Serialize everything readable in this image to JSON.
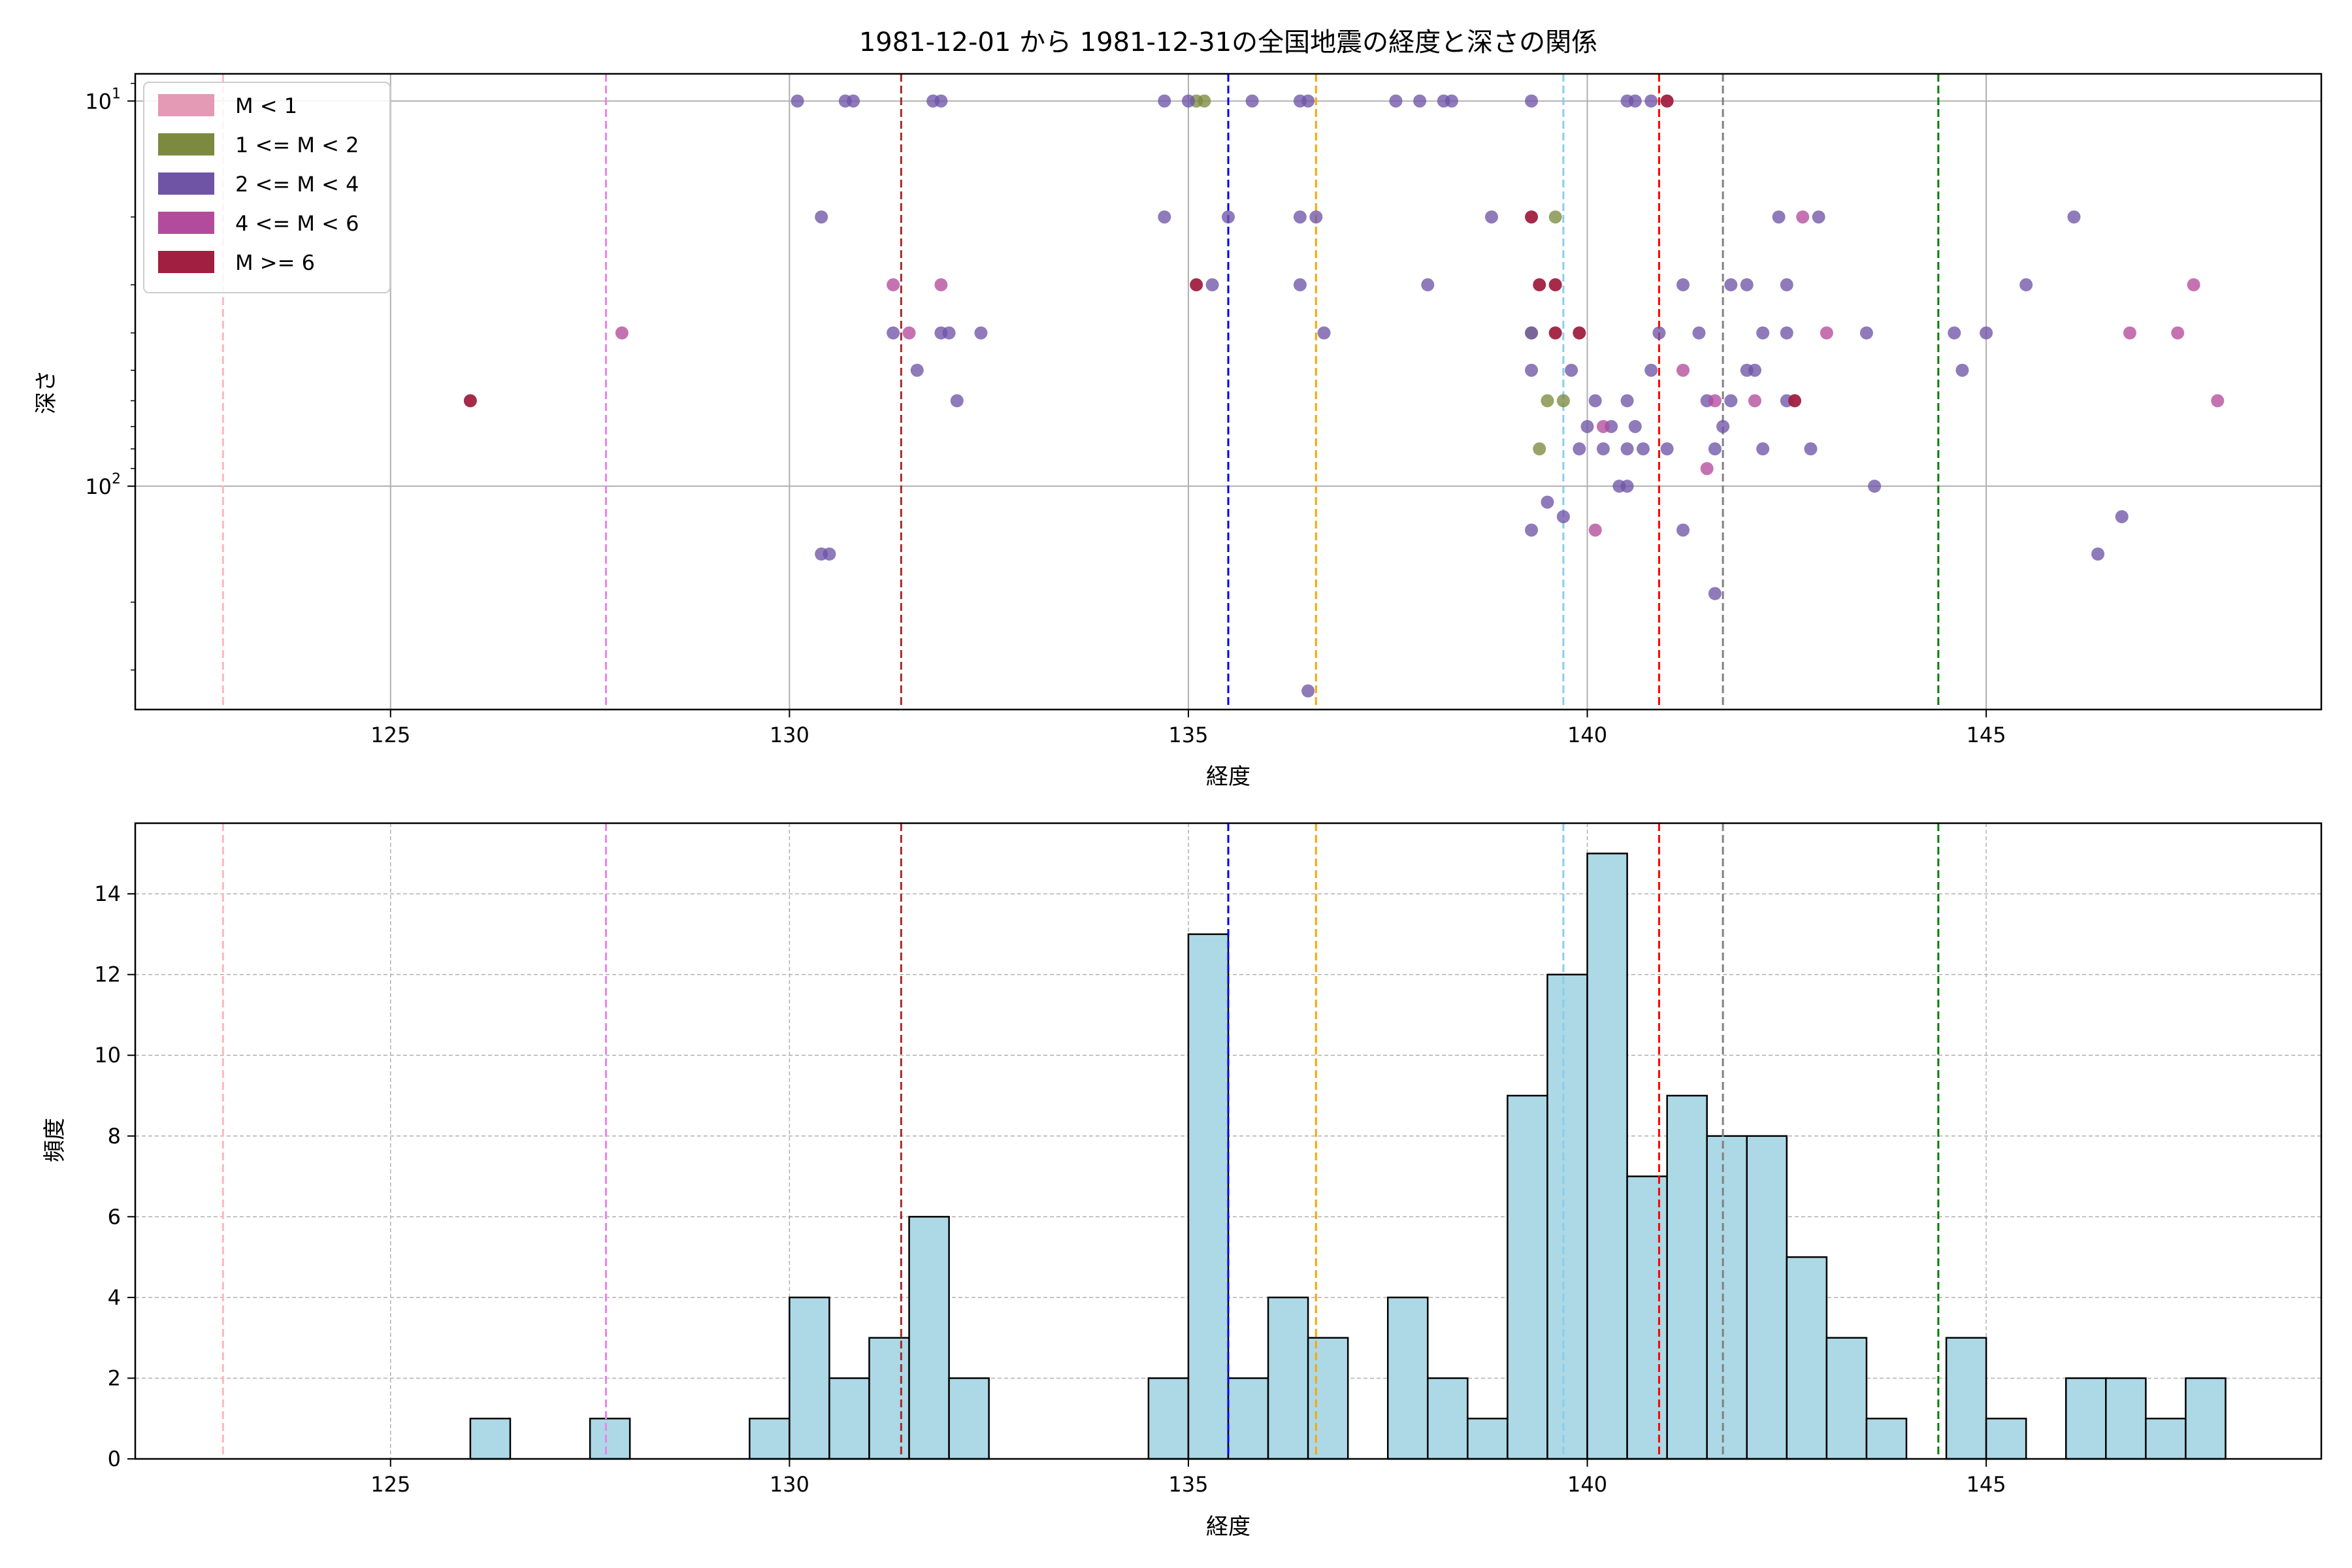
{
  "chart_data": [
    {
      "type": "scatter",
      "title": "1981-12-01 から 1981-12-31の全国地震の経度と深さの関係",
      "xlabel": "経度",
      "ylabel": "深さ",
      "xlim": [
        121.8,
        149.2
      ],
      "ylim": [
        380,
        8.5
      ],
      "yscale": "log",
      "y_inverted": true,
      "xticks": [
        125,
        130,
        135,
        140,
        145
      ],
      "xtick_labels": [
        "125",
        "130",
        "135",
        "140",
        "145"
      ],
      "ytick_major": [
        {
          "value": 10,
          "base": "10",
          "exp": "1"
        },
        {
          "value": 100,
          "base": "10",
          "exp": "2"
        }
      ],
      "grid": true,
      "legend_position": "top-left",
      "legend": [
        {
          "label": "M < 1",
          "color": "#e499b4"
        },
        {
          "label": "1 <= M < 2",
          "color": "#7b8a3f"
        },
        {
          "label": "2 <= M < 4",
          "color": "#6f54a6"
        },
        {
          "label": "4 <= M < 6",
          "color": "#b34b9c"
        },
        {
          "label": "M >= 6",
          "color": "#a11f40"
        }
      ],
      "vlines": [
        {
          "x": 122.9,
          "color": "#ffb6c1"
        },
        {
          "x": 127.7,
          "color": "#ee82ee"
        },
        {
          "x": 131.4,
          "color": "#a52a2a"
        },
        {
          "x": 135.5,
          "color": "#0000ff"
        },
        {
          "x": 136.6,
          "color": "#ffa500"
        },
        {
          "x": 139.7,
          "color": "#87ceeb"
        },
        {
          "x": 140.9,
          "color": "#ff0000"
        },
        {
          "x": 141.7,
          "color": "#808080"
        },
        {
          "x": 144.4,
          "color": "#008000"
        }
      ],
      "series": [
        {
          "name": "M < 1",
          "color": "#e499b4",
          "points": []
        },
        {
          "name": "1 <= M < 2",
          "color": "#7b8a3f",
          "points": [
            [
              135.1,
              10
            ],
            [
              135.2,
              10
            ],
            [
              139.6,
              20
            ],
            [
              139.3,
              40
            ],
            [
              139.5,
              60
            ],
            [
              139.7,
              60
            ],
            [
              139.4,
              80
            ]
          ]
        },
        {
          "name": "2 <= M < 4",
          "color": "#6f54a6",
          "points": [
            [
              130.1,
              10
            ],
            [
              130.7,
              10
            ],
            [
              130.8,
              10
            ],
            [
              131.8,
              10
            ],
            [
              131.9,
              10
            ],
            [
              134.7,
              10
            ],
            [
              135.0,
              10
            ],
            [
              135.8,
              10
            ],
            [
              136.4,
              10
            ],
            [
              136.5,
              10
            ],
            [
              137.6,
              10
            ],
            [
              137.9,
              10
            ],
            [
              138.2,
              10
            ],
            [
              138.3,
              10
            ],
            [
              139.3,
              10
            ],
            [
              140.5,
              10
            ],
            [
              140.6,
              10
            ],
            [
              140.8,
              10
            ],
            [
              130.4,
              20
            ],
            [
              134.7,
              20
            ],
            [
              135.5,
              20
            ],
            [
              136.4,
              20
            ],
            [
              136.6,
              20
            ],
            [
              138.8,
              20
            ],
            [
              142.4,
              20
            ],
            [
              142.9,
              20
            ],
            [
              146.1,
              20
            ],
            [
              135.3,
              30
            ],
            [
              136.4,
              30
            ],
            [
              138.0,
              30
            ],
            [
              141.2,
              30
            ],
            [
              141.8,
              30
            ],
            [
              142.0,
              30
            ],
            [
              142.5,
              30
            ],
            [
              145.5,
              30
            ],
            [
              131.3,
              40
            ],
            [
              131.9,
              40
            ],
            [
              132.0,
              40
            ],
            [
              132.4,
              40
            ],
            [
              136.7,
              40
            ],
            [
              139.3,
              40
            ],
            [
              140.9,
              40
            ],
            [
              141.4,
              40
            ],
            [
              142.2,
              40
            ],
            [
              142.5,
              40
            ],
            [
              143.5,
              40
            ],
            [
              144.6,
              40
            ],
            [
              145.0,
              40
            ],
            [
              131.6,
              50
            ],
            [
              139.3,
              50
            ],
            [
              139.8,
              50
            ],
            [
              140.8,
              50
            ],
            [
              142.0,
              50
            ],
            [
              142.1,
              50
            ],
            [
              144.7,
              50
            ],
            [
              132.1,
              60
            ],
            [
              140.1,
              60
            ],
            [
              140.5,
              60
            ],
            [
              141.5,
              60
            ],
            [
              141.8,
              60
            ],
            [
              142.5,
              60
            ],
            [
              140.0,
              70
            ],
            [
              140.3,
              70
            ],
            [
              140.6,
              70
            ],
            [
              141.7,
              70
            ],
            [
              139.9,
              80
            ],
            [
              140.2,
              80
            ],
            [
              140.5,
              80
            ],
            [
              140.7,
              80
            ],
            [
              141.0,
              80
            ],
            [
              141.6,
              80
            ],
            [
              142.2,
              80
            ],
            [
              142.8,
              80
            ],
            [
              140.4,
              100
            ],
            [
              140.5,
              100
            ],
            [
              143.6,
              100
            ],
            [
              139.5,
              110
            ],
            [
              139.7,
              120
            ],
            [
              146.7,
              120
            ],
            [
              139.3,
              130
            ],
            [
              141.2,
              130
            ],
            [
              130.4,
              150
            ],
            [
              130.5,
              150
            ],
            [
              146.4,
              150
            ],
            [
              141.6,
              190
            ],
            [
              136.5,
              340
            ]
          ]
        },
        {
          "name": "4 <= M < 6",
          "color": "#b34b9c",
          "points": [
            [
              127.9,
              40
            ],
            [
              131.3,
              30
            ],
            [
              131.9,
              30
            ],
            [
              131.5,
              40
            ],
            [
              141.2,
              50
            ],
            [
              141.6,
              60
            ],
            [
              142.1,
              60
            ],
            [
              141.5,
              90
            ],
            [
              142.7,
              20
            ],
            [
              143.0,
              40
            ],
            [
              146.8,
              40
            ],
            [
              147.4,
              40
            ],
            [
              147.6,
              30
            ],
            [
              147.9,
              60
            ],
            [
              140.1,
              130
            ],
            [
              140.2,
              70
            ]
          ]
        },
        {
          "name": "M >= 6",
          "color": "#a11f40",
          "points": [
            [
              126.0,
              60
            ],
            [
              135.1,
              30
            ],
            [
              139.3,
              20
            ],
            [
              139.4,
              30
            ],
            [
              139.6,
              30
            ],
            [
              139.6,
              40
            ],
            [
              139.9,
              40
            ],
            [
              141.0,
              10
            ],
            [
              142.6,
              60
            ]
          ]
        }
      ]
    },
    {
      "type": "bar",
      "title": "",
      "xlabel": "経度",
      "ylabel": "頻度",
      "xlim": [
        121.8,
        149.2
      ],
      "ylim": [
        0,
        15.75
      ],
      "xticks": [
        125,
        130,
        135,
        140,
        145
      ],
      "xtick_labels": [
        "125",
        "130",
        "135",
        "140",
        "145"
      ],
      "yticks": [
        0,
        2,
        4,
        6,
        8,
        10,
        12,
        14
      ],
      "ytick_labels": [
        "0",
        "2",
        "4",
        "6",
        "8",
        "10",
        "12",
        "14"
      ],
      "grid": true,
      "bar_color": "#add8e6",
      "edge_color": "#000000",
      "bin_start": 126.0,
      "bin_width": 0.5,
      "values": [
        1,
        0,
        0,
        1,
        0,
        0,
        0,
        1,
        4,
        2,
        3,
        6,
        2,
        0,
        0,
        0,
        0,
        2,
        13,
        2,
        4,
        3,
        0,
        4,
        2,
        1,
        9,
        12,
        15,
        7,
        9,
        8,
        8,
        5,
        3,
        1,
        0,
        3,
        1,
        0,
        2,
        2,
        1,
        2
      ],
      "vlines": [
        {
          "x": 122.9,
          "color": "#ffb6c1"
        },
        {
          "x": 127.7,
          "color": "#ee82ee"
        },
        {
          "x": 131.4,
          "color": "#a52a2a"
        },
        {
          "x": 135.5,
          "color": "#0000ff"
        },
        {
          "x": 136.6,
          "color": "#ffa500"
        },
        {
          "x": 139.7,
          "color": "#87ceeb"
        },
        {
          "x": 140.9,
          "color": "#ff0000"
        },
        {
          "x": 141.7,
          "color": "#808080"
        },
        {
          "x": 144.4,
          "color": "#008000"
        }
      ]
    }
  ]
}
